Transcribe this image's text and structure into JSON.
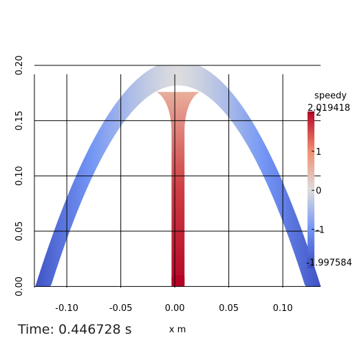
{
  "chart_data": {
    "type": "heatmap",
    "xlabel": "x m",
    "ylabel": "",
    "xlim": [
      -0.13,
      0.135
    ],
    "ylim": [
      -0.001,
      0.2
    ],
    "x_ticks": [
      -0.1,
      -0.05,
      0.0,
      0.05,
      0.1
    ],
    "x_tick_labels": [
      "-0.10",
      "-0.05",
      "0.00",
      "0.05",
      "0.10"
    ],
    "y_ticks": [
      0.0,
      0.05,
      0.1,
      0.15,
      0.2
    ],
    "y_tick_labels": [
      "0.00",
      "0.05",
      "0.10",
      "0.15",
      "0.20"
    ],
    "grid": true,
    "field_name": "speedy",
    "colorbar": {
      "title": "speedy",
      "max_label": "2.019418",
      "min_label": "-1.997584",
      "max": 2.019418,
      "min": -1.997584,
      "ticks": [
        2,
        1,
        0,
        -1
      ],
      "tick_labels": [
        "2",
        "1",
        "0",
        "-1"
      ],
      "colormap": [
        "#3b4cc0",
        "#7396f5",
        "#dddddd",
        "#f18d6f",
        "#b40426"
      ],
      "placement": "right"
    },
    "geometry": {
      "arch_center_x": 0.003,
      "arch_outer_half_width": 0.132,
      "arch_inner_half_width": 0.118,
      "arch_outer_peak": 0.204,
      "arch_inner_peak": 0.182,
      "jet_half_width": 0.006,
      "jet_top": 0.165
    },
    "field_values": {
      "arch_top": 0.0,
      "arch_foot": -1.9,
      "jet_base": 2.0,
      "jet_top": 0.6
    }
  },
  "footer": {
    "time_text": "Time: 0.446728 s"
  }
}
